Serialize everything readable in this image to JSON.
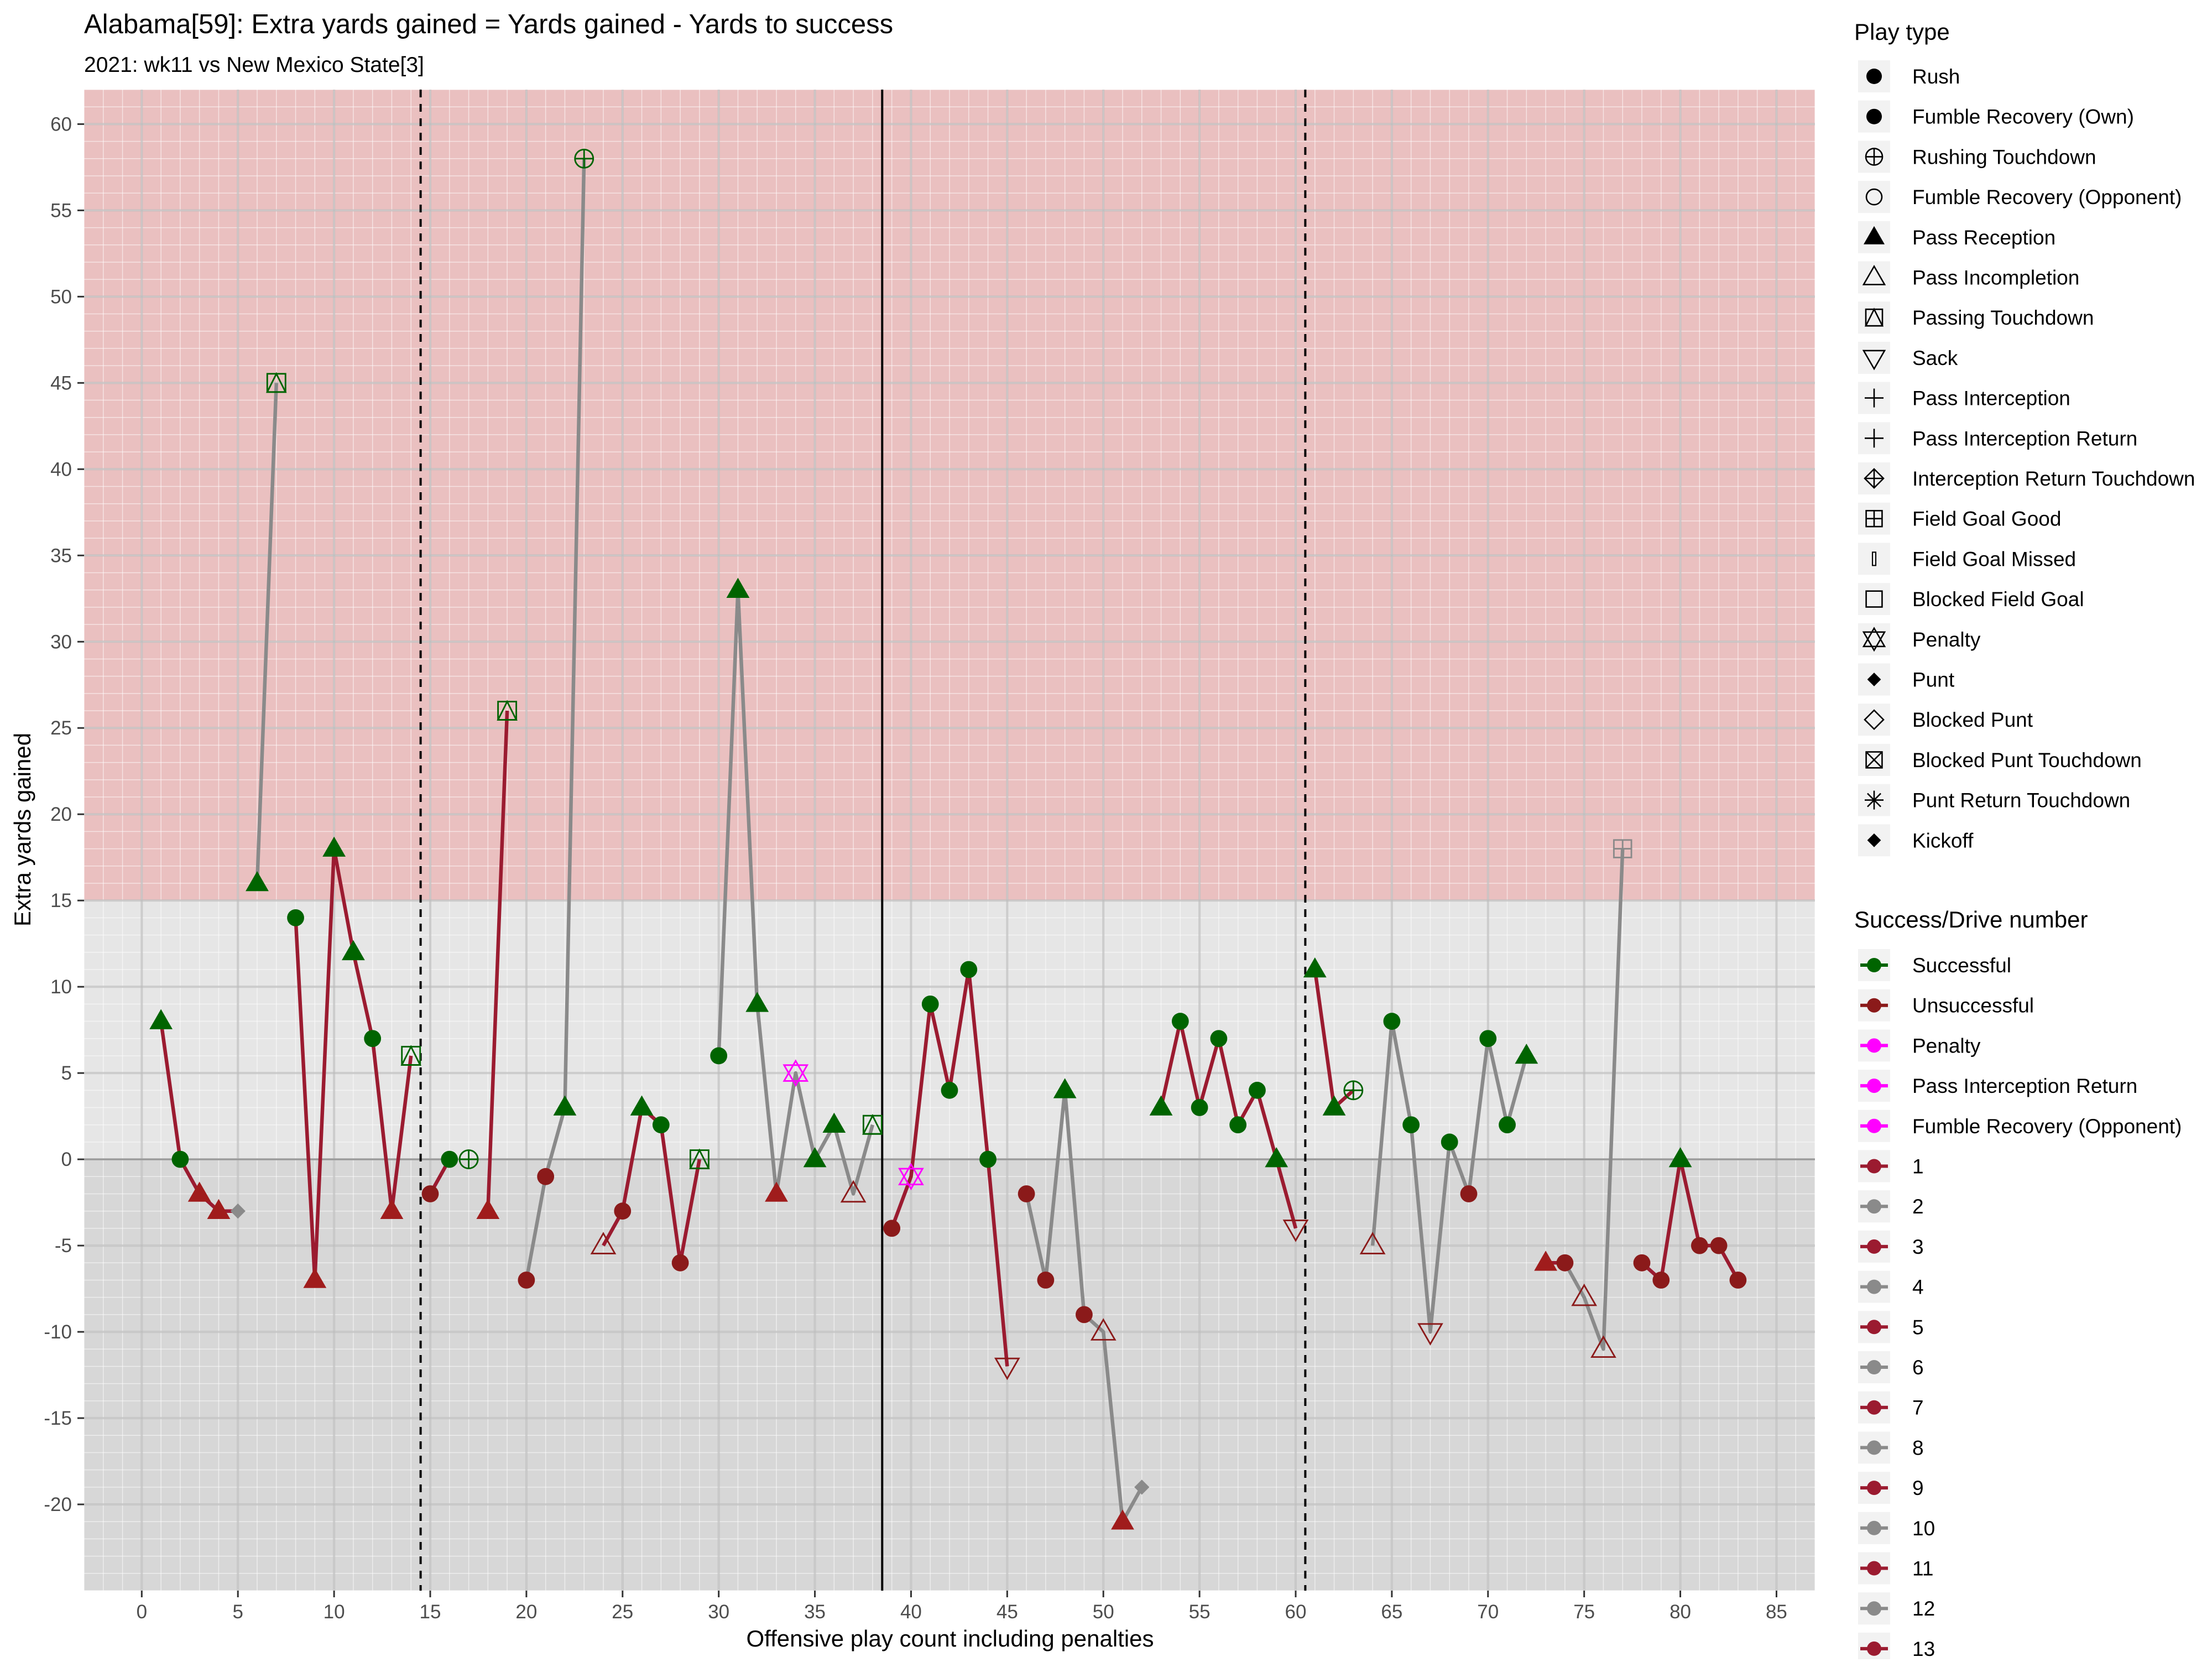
{
  "chart_data": {
    "type": "line",
    "title": "Alabama[59]: Extra yards gained = Yards gained - Yards to success",
    "subtitle": "2021: wk11 vs New Mexico State[3]",
    "xlabel": "Offensive play count including penalties",
    "ylabel": "Extra yards gained",
    "xlim": [
      -3,
      87
    ],
    "ylim": [
      -25,
      62
    ],
    "x_ticks": [
      0,
      5,
      10,
      15,
      20,
      25,
      30,
      35,
      40,
      45,
      50,
      55,
      60,
      65,
      70,
      75,
      80,
      85
    ],
    "y_ticks": [
      -20,
      -15,
      -10,
      -5,
      0,
      5,
      10,
      15,
      20,
      25,
      30,
      35,
      40,
      45,
      50,
      55,
      60
    ],
    "shaded_regions": [
      {
        "from": 15,
        "to": 62,
        "color": "#eac0c0"
      },
      {
        "from": 0,
        "to": 15,
        "color": "#e6e6e6"
      },
      {
        "from": -25,
        "to": 0,
        "color": "#d7d7d7"
      }
    ],
    "zero_line": 0,
    "quarter_lines": [
      14.5,
      60.5
    ],
    "half_line": 38.5,
    "grid": true,
    "legend_placement": "right",
    "colors": {
      "successful": "#006400",
      "unsuccessful": "#8b1a1a",
      "penalty": "#ff00ff",
      "drive_odd": "#9b1b30",
      "drive_even": "#8a8a8a"
    },
    "points": [
      {
        "x": 1,
        "y": 8,
        "shape": "tri",
        "status": "s"
      },
      {
        "x": 2,
        "y": 0,
        "shape": "circ",
        "status": "s"
      },
      {
        "x": 3,
        "y": -2,
        "shape": "tri",
        "status": "u"
      },
      {
        "x": 4,
        "y": -3,
        "shape": "tri",
        "status": "u"
      },
      {
        "x": 5,
        "y": -3,
        "shape": "diam",
        "status": "g"
      },
      {
        "x": 6,
        "y": 16,
        "shape": "tri",
        "status": "s"
      },
      {
        "x": 7,
        "y": 45,
        "shape": "sqtri",
        "status": "s"
      },
      {
        "x": 8,
        "y": 14,
        "shape": "circ",
        "status": "s"
      },
      {
        "x": 9,
        "y": -7,
        "shape": "tri",
        "status": "u"
      },
      {
        "x": 10,
        "y": 18,
        "shape": "tri",
        "status": "s"
      },
      {
        "x": 11,
        "y": 12,
        "shape": "tri",
        "status": "s"
      },
      {
        "x": 12,
        "y": 7,
        "shape": "circ",
        "status": "s"
      },
      {
        "x": 13,
        "y": -3,
        "shape": "tri",
        "status": "u"
      },
      {
        "x": 14,
        "y": 6,
        "shape": "sqtri",
        "status": "s"
      },
      {
        "x": 15,
        "y": -2,
        "shape": "circ",
        "status": "u"
      },
      {
        "x": 16,
        "y": 0,
        "shape": "circ",
        "status": "s"
      },
      {
        "x": 17,
        "y": 0,
        "shape": "ocplus",
        "status": "s"
      },
      {
        "x": 18,
        "y": -3,
        "shape": "tri",
        "status": "u"
      },
      {
        "x": 19,
        "y": 26,
        "shape": "sqtri",
        "status": "s"
      },
      {
        "x": 20,
        "y": -7,
        "shape": "circ",
        "status": "u"
      },
      {
        "x": 21,
        "y": -1,
        "shape": "circ",
        "status": "u"
      },
      {
        "x": 22,
        "y": 3,
        "shape": "tri",
        "status": "s"
      },
      {
        "x": 23,
        "y": 58,
        "shape": "ocplus",
        "status": "s"
      },
      {
        "x": 24,
        "y": -5,
        "shape": "otri",
        "status": "u"
      },
      {
        "x": 25,
        "y": -3,
        "shape": "circ",
        "status": "u"
      },
      {
        "x": 26,
        "y": 3,
        "shape": "tri",
        "status": "s"
      },
      {
        "x": 27,
        "y": 2,
        "shape": "circ",
        "status": "s"
      },
      {
        "x": 28,
        "y": -6,
        "shape": "circ",
        "status": "u"
      },
      {
        "x": 29,
        "y": 0,
        "shape": "sqtri",
        "status": "s"
      },
      {
        "x": 30,
        "y": 6,
        "shape": "circ",
        "status": "s"
      },
      {
        "x": 31,
        "y": 33,
        "shape": "tri",
        "status": "s"
      },
      {
        "x": 32,
        "y": 9,
        "shape": "tri",
        "status": "s"
      },
      {
        "x": 33,
        "y": -2,
        "shape": "tri",
        "status": "u"
      },
      {
        "x": 34,
        "y": 5,
        "shape": "star",
        "status": "p"
      },
      {
        "x": 35,
        "y": 0,
        "shape": "tri",
        "status": "s"
      },
      {
        "x": 36,
        "y": 2,
        "shape": "tri",
        "status": "s"
      },
      {
        "x": 37,
        "y": -2,
        "shape": "otri",
        "status": "u"
      },
      {
        "x": 38,
        "y": 2,
        "shape": "sqtri",
        "status": "s"
      },
      {
        "x": 39,
        "y": -4,
        "shape": "circ",
        "status": "u"
      },
      {
        "x": 40,
        "y": -1,
        "shape": "star",
        "status": "p"
      },
      {
        "x": 41,
        "y": 9,
        "shape": "circ",
        "status": "s"
      },
      {
        "x": 42,
        "y": 4,
        "shape": "circ",
        "status": "s"
      },
      {
        "x": 43,
        "y": 11,
        "shape": "circ",
        "status": "s"
      },
      {
        "x": 44,
        "y": 0,
        "shape": "circ",
        "status": "s"
      },
      {
        "x": 45,
        "y": -12,
        "shape": "dtri",
        "status": "u"
      },
      {
        "x": 46,
        "y": -2,
        "shape": "circ",
        "status": "u"
      },
      {
        "x": 47,
        "y": -7,
        "shape": "circ",
        "status": "u"
      },
      {
        "x": 48,
        "y": 4,
        "shape": "tri",
        "status": "s"
      },
      {
        "x": 49,
        "y": -9,
        "shape": "circ",
        "status": "u"
      },
      {
        "x": 50,
        "y": -10,
        "shape": "otri",
        "status": "u"
      },
      {
        "x": 51,
        "y": -21,
        "shape": "tri",
        "status": "u"
      },
      {
        "x": 52,
        "y": -19,
        "shape": "diam",
        "status": "g"
      },
      {
        "x": 53,
        "y": 3,
        "shape": "tri",
        "status": "s"
      },
      {
        "x": 54,
        "y": 8,
        "shape": "circ",
        "status": "s"
      },
      {
        "x": 55,
        "y": 3,
        "shape": "circ",
        "status": "s"
      },
      {
        "x": 56,
        "y": 7,
        "shape": "circ",
        "status": "s"
      },
      {
        "x": 57,
        "y": 2,
        "shape": "circ",
        "status": "s"
      },
      {
        "x": 58,
        "y": 4,
        "shape": "circ",
        "status": "s"
      },
      {
        "x": 59,
        "y": 0,
        "shape": "tri",
        "status": "s"
      },
      {
        "x": 60,
        "y": -4,
        "shape": "dtri",
        "status": "u"
      },
      {
        "x": 61,
        "y": 11,
        "shape": "tri",
        "status": "s"
      },
      {
        "x": 62,
        "y": 3,
        "shape": "tri",
        "status": "s"
      },
      {
        "x": 63,
        "y": 4,
        "shape": "ocplus",
        "status": "s"
      },
      {
        "x": 64,
        "y": -5,
        "shape": "otri",
        "status": "u"
      },
      {
        "x": 65,
        "y": 8,
        "shape": "circ",
        "status": "s"
      },
      {
        "x": 66,
        "y": 2,
        "shape": "circ",
        "status": "s"
      },
      {
        "x": 67,
        "y": -10,
        "shape": "dtri",
        "status": "u"
      },
      {
        "x": 68,
        "y": 1,
        "shape": "circ",
        "status": "s"
      },
      {
        "x": 69,
        "y": -2,
        "shape": "circ",
        "status": "u"
      },
      {
        "x": 70,
        "y": 7,
        "shape": "circ",
        "status": "s"
      },
      {
        "x": 71,
        "y": 2,
        "shape": "circ",
        "status": "s"
      },
      {
        "x": 72,
        "y": 6,
        "shape": "tri",
        "status": "s"
      },
      {
        "x": 73,
        "y": -6,
        "shape": "tri",
        "status": "u"
      },
      {
        "x": 74,
        "y": -6,
        "shape": "circ",
        "status": "u"
      },
      {
        "x": 75,
        "y": -8,
        "shape": "otri",
        "status": "u"
      },
      {
        "x": 76,
        "y": -11,
        "shape": "otri",
        "status": "u"
      },
      {
        "x": 77,
        "y": 18,
        "shape": "sqplus",
        "status": "g"
      },
      {
        "x": 78,
        "y": -6,
        "shape": "circ",
        "status": "u"
      },
      {
        "x": 79,
        "y": -7,
        "shape": "circ",
        "status": "u"
      },
      {
        "x": 80,
        "y": 0,
        "shape": "tri",
        "status": "s"
      },
      {
        "x": 81,
        "y": -5,
        "shape": "circ",
        "status": "u"
      },
      {
        "x": 82,
        "y": -5,
        "shape": "circ",
        "status": "u"
      },
      {
        "x": 83,
        "y": -7,
        "shape": "circ",
        "status": "u"
      }
    ],
    "drive_segments": [
      {
        "drive": 1,
        "from": 1,
        "to": 5
      },
      {
        "drive": 2,
        "from": 6,
        "to": 7
      },
      {
        "drive": 3,
        "from": 8,
        "to": 14
      },
      {
        "drive": 5,
        "from": 15,
        "to": 16
      },
      {
        "drive": 7,
        "from": 18,
        "to": 19
      },
      {
        "drive": 8,
        "from": 20,
        "to": 23
      },
      {
        "drive": 9,
        "from": 24,
        "to": 29
      },
      {
        "drive": 10,
        "from": 30,
        "to": 38
      },
      {
        "drive": 11,
        "from": 39,
        "to": 45
      },
      {
        "drive": 12,
        "from": 46,
        "to": 52
      },
      {
        "drive": 13,
        "from": 53,
        "to": 60
      },
      {
        "drive": 13,
        "from": 61,
        "to": 63
      },
      {
        "drive": 12,
        "from": 64,
        "to": 72
      },
      {
        "drive": 11,
        "from": 73,
        "to": 74
      },
      {
        "drive": 12,
        "from": 74,
        "to": 77
      },
      {
        "drive": 13,
        "from": 78,
        "to": 83
      }
    ]
  },
  "legend_play_type": {
    "title": "Play type",
    "items": [
      {
        "label": "Rush",
        "symbol": "circ"
      },
      {
        "label": "Fumble Recovery (Own)",
        "symbol": "circ"
      },
      {
        "label": "Rushing Touchdown",
        "symbol": "ocplus"
      },
      {
        "label": "Fumble Recovery (Opponent)",
        "symbol": "ocirc"
      },
      {
        "label": "Pass Reception",
        "symbol": "tri"
      },
      {
        "label": "Pass Incompletion",
        "symbol": "otri"
      },
      {
        "label": "Passing Touchdown",
        "symbol": "sqtri"
      },
      {
        "label": "Sack",
        "symbol": "dtri"
      },
      {
        "label": "Pass Interception",
        "symbol": "plus"
      },
      {
        "label": "Pass Interception Return",
        "symbol": "plus"
      },
      {
        "label": "Interception Return Touchdown",
        "symbol": "dplus"
      },
      {
        "label": "Field Goal Good",
        "symbol": "sqplus"
      },
      {
        "label": "Field Goal Missed",
        "symbol": "bar"
      },
      {
        "label": "Blocked Field Goal",
        "symbol": "osq"
      },
      {
        "label": "Penalty",
        "symbol": "star"
      },
      {
        "label": "Punt",
        "symbol": "diam"
      },
      {
        "label": "Blocked Punt",
        "symbol": "odiam"
      },
      {
        "label": "Blocked Punt Touchdown",
        "symbol": "sqx"
      },
      {
        "label": "Punt Return Touchdown",
        "symbol": "asterisk"
      },
      {
        "label": "Kickoff",
        "symbol": "diam"
      }
    ]
  },
  "legend_success": {
    "title": "Success/Drive number",
    "items": [
      {
        "label": "Successful",
        "color": "#006400"
      },
      {
        "label": "Unsuccessful",
        "color": "#8b1a1a"
      },
      {
        "label": "Penalty",
        "color": "#ff00ff"
      },
      {
        "label": "Pass Interception Return",
        "color": "#ff00ff"
      },
      {
        "label": "Fumble Recovery (Opponent)",
        "color": "#ff00ff"
      },
      {
        "label": "1",
        "color": "#9b1b30"
      },
      {
        "label": "2",
        "color": "#8a8a8a"
      },
      {
        "label": "3",
        "color": "#9b1b30"
      },
      {
        "label": "4",
        "color": "#8a8a8a"
      },
      {
        "label": "5",
        "color": "#9b1b30"
      },
      {
        "label": "6",
        "color": "#8a8a8a"
      },
      {
        "label": "7",
        "color": "#9b1b30"
      },
      {
        "label": "8",
        "color": "#8a8a8a"
      },
      {
        "label": "9",
        "color": "#9b1b30"
      },
      {
        "label": "10",
        "color": "#8a8a8a"
      },
      {
        "label": "11",
        "color": "#9b1b30"
      },
      {
        "label": "12",
        "color": "#8a8a8a"
      },
      {
        "label": "13",
        "color": "#9b1b30"
      }
    ]
  }
}
